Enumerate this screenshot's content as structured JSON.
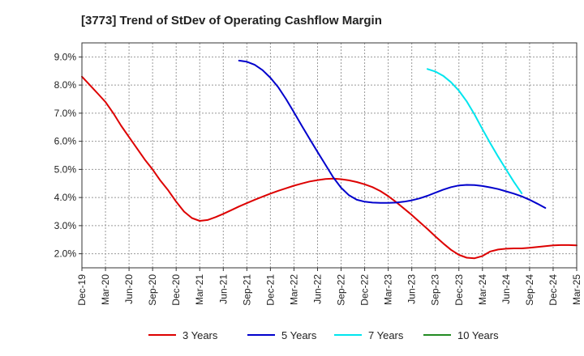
{
  "chart_data": {
    "type": "line",
    "title": "[3773]  Trend of StDev of Operating Cashflow Margin",
    "xlabel": "",
    "ylabel": "",
    "x_ticks": [
      "Dec-19",
      "Mar-20",
      "Jun-20",
      "Sep-20",
      "Dec-20",
      "Mar-21",
      "Jun-21",
      "Sep-21",
      "Dec-21",
      "Mar-22",
      "Jun-22",
      "Sep-22",
      "Dec-22",
      "Mar-23",
      "Jun-23",
      "Sep-23",
      "Dec-23",
      "Mar-24",
      "Jun-24",
      "Sep-24",
      "Dec-24",
      "Mar-25"
    ],
    "y_ticks": [
      "2.0%",
      "3.0%",
      "4.0%",
      "5.0%",
      "6.0%",
      "7.0%",
      "8.0%",
      "9.0%"
    ],
    "y_tick_values": [
      2,
      3,
      4,
      5,
      6,
      7,
      8,
      9
    ],
    "ylim": [
      1.5,
      9.5
    ],
    "grid": true,
    "legend_position": "bottom",
    "series": [
      {
        "name": "3 Years",
        "color": "#dd0000",
        "points": [
          [
            "Dec-19",
            8.3
          ],
          [
            "Jan-20",
            8.0
          ],
          [
            "Feb-20",
            7.7
          ],
          [
            "Mar-20",
            7.4
          ],
          [
            "Apr-20",
            7.0
          ],
          [
            "May-20",
            6.55
          ],
          [
            "Jun-20",
            6.15
          ],
          [
            "Jul-20",
            5.75
          ],
          [
            "Aug-20",
            5.35
          ],
          [
            "Sep-20",
            5.0
          ],
          [
            "Oct-20",
            4.6
          ],
          [
            "Nov-20",
            4.25
          ],
          [
            "Dec-20",
            3.85
          ],
          [
            "Jan-21",
            3.5
          ],
          [
            "Feb-21",
            3.27
          ],
          [
            "Mar-21",
            3.17
          ],
          [
            "Apr-21",
            3.2
          ],
          [
            "May-21",
            3.3
          ],
          [
            "Jun-21",
            3.42
          ],
          [
            "Jul-21",
            3.55
          ],
          [
            "Aug-21",
            3.68
          ],
          [
            "Sep-21",
            3.8
          ],
          [
            "Oct-21",
            3.92
          ],
          [
            "Nov-21",
            4.03
          ],
          [
            "Dec-21",
            4.14
          ],
          [
            "Jan-22",
            4.24
          ],
          [
            "Feb-22",
            4.33
          ],
          [
            "Mar-22",
            4.42
          ],
          [
            "Apr-22",
            4.5
          ],
          [
            "May-22",
            4.57
          ],
          [
            "Jun-22",
            4.62
          ],
          [
            "Jul-22",
            4.66
          ],
          [
            "Aug-22",
            4.67
          ],
          [
            "Sep-22",
            4.65
          ],
          [
            "Oct-22",
            4.61
          ],
          [
            "Nov-22",
            4.55
          ],
          [
            "Dec-22",
            4.47
          ],
          [
            "Jan-23",
            4.37
          ],
          [
            "Feb-23",
            4.23
          ],
          [
            "Mar-23",
            4.05
          ],
          [
            "Apr-23",
            3.84
          ],
          [
            "May-23",
            3.61
          ],
          [
            "Jun-23",
            3.38
          ],
          [
            "Jul-23",
            3.13
          ],
          [
            "Aug-23",
            2.88
          ],
          [
            "Sep-23",
            2.62
          ],
          [
            "Oct-23",
            2.37
          ],
          [
            "Nov-23",
            2.14
          ],
          [
            "Dec-23",
            1.96
          ],
          [
            "Jan-24",
            1.86
          ],
          [
            "Feb-24",
            1.84
          ],
          [
            "Mar-24",
            1.92
          ],
          [
            "Apr-24",
            2.08
          ],
          [
            "May-24",
            2.15
          ],
          [
            "Jun-24",
            2.18
          ],
          [
            "Jul-24",
            2.19
          ],
          [
            "Aug-24",
            2.19
          ],
          [
            "Sep-24",
            2.21
          ],
          [
            "Oct-24",
            2.24
          ],
          [
            "Nov-24",
            2.27
          ],
          [
            "Dec-24",
            2.3
          ],
          [
            "Jan-25",
            2.31
          ],
          [
            "Feb-25",
            2.31
          ],
          [
            "Mar-25",
            2.3
          ]
        ]
      },
      {
        "name": "5 Years",
        "color": "#0000cc",
        "points": [
          [
            "Aug-21",
            8.87
          ],
          [
            "Sep-21",
            8.83
          ],
          [
            "Oct-21",
            8.72
          ],
          [
            "Nov-21",
            8.53
          ],
          [
            "Dec-21",
            8.26
          ],
          [
            "Jan-22",
            7.92
          ],
          [
            "Feb-22",
            7.5
          ],
          [
            "Mar-22",
            7.03
          ],
          [
            "Apr-22",
            6.55
          ],
          [
            "May-22",
            6.08
          ],
          [
            "Jun-22",
            5.62
          ],
          [
            "Jul-22",
            5.17
          ],
          [
            "Aug-22",
            4.72
          ],
          [
            "Sep-22",
            4.35
          ],
          [
            "Oct-22",
            4.08
          ],
          [
            "Nov-22",
            3.92
          ],
          [
            "Dec-22",
            3.85
          ],
          [
            "Jan-23",
            3.82
          ],
          [
            "Feb-23",
            3.81
          ],
          [
            "Mar-23",
            3.81
          ],
          [
            "Apr-23",
            3.82
          ],
          [
            "May-23",
            3.85
          ],
          [
            "Jun-23",
            3.9
          ],
          [
            "Jul-23",
            3.97
          ],
          [
            "Aug-23",
            4.06
          ],
          [
            "Sep-23",
            4.17
          ],
          [
            "Oct-23",
            4.28
          ],
          [
            "Nov-23",
            4.37
          ],
          [
            "Dec-23",
            4.43
          ],
          [
            "Jan-24",
            4.45
          ],
          [
            "Feb-24",
            4.44
          ],
          [
            "Mar-24",
            4.41
          ],
          [
            "Apr-24",
            4.36
          ],
          [
            "May-24",
            4.3
          ],
          [
            "Jun-24",
            4.22
          ],
          [
            "Jul-24",
            4.14
          ],
          [
            "Aug-24",
            4.04
          ],
          [
            "Sep-24",
            3.92
          ],
          [
            "Oct-24",
            3.78
          ],
          [
            "Nov-24",
            3.63
          ]
        ]
      },
      {
        "name": "7 Years",
        "color": "#00e5ee",
        "points": [
          [
            "Aug-23",
            8.57
          ],
          [
            "Sep-23",
            8.48
          ],
          [
            "Oct-23",
            8.33
          ],
          [
            "Nov-23",
            8.1
          ],
          [
            "Dec-23",
            7.8
          ],
          [
            "Jan-24",
            7.42
          ],
          [
            "Feb-24",
            6.95
          ],
          [
            "Mar-24",
            6.43
          ],
          [
            "Apr-24",
            5.93
          ],
          [
            "May-24",
            5.45
          ],
          [
            "Jun-24",
            5.0
          ],
          [
            "Jul-24",
            4.56
          ],
          [
            "Aug-24",
            4.15
          ]
        ]
      },
      {
        "name": "10 Years",
        "color": "#228b22",
        "points": []
      }
    ]
  }
}
